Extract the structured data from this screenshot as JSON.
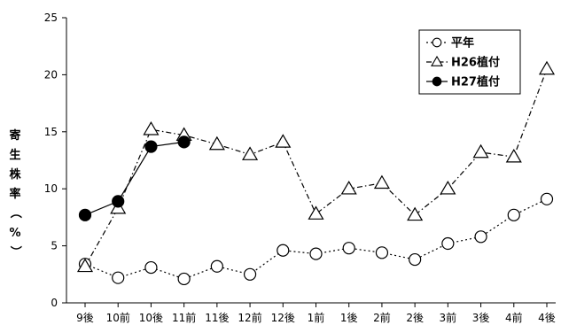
{
  "chart_data": {
    "type": "line",
    "title": "",
    "xlabel": "",
    "ylabel": "寄生株率（%）",
    "ylabel_chars": [
      "寄",
      "生",
      "株",
      "率",
      "（",
      "%",
      "）"
    ],
    "ylim": [
      0,
      25
    ],
    "yticks": [
      0,
      5,
      10,
      15,
      20,
      25
    ],
    "grid": false,
    "legend_position": "top-right",
    "categories": [
      "9後",
      "10前",
      "10後",
      "11前",
      "11後",
      "12前",
      "12後",
      "1前",
      "1後",
      "2前",
      "2後",
      "3前",
      "3後",
      "4前",
      "4後"
    ],
    "series": [
      {
        "name": "平年",
        "marker": "circle-open",
        "line": "dotted",
        "color": "#000000",
        "values": [
          3.4,
          2.2,
          3.1,
          2.1,
          3.2,
          2.5,
          4.6,
          4.3,
          4.8,
          4.4,
          3.8,
          5.2,
          5.8,
          7.7,
          9.1
        ]
      },
      {
        "name": "H26植付",
        "marker": "triangle-open",
        "line": "dash-dot",
        "color": "#000000",
        "values": [
          3.2,
          8.3,
          15.2,
          14.7,
          13.9,
          13.0,
          14.1,
          7.8,
          10.0,
          10.5,
          7.7,
          10.0,
          13.2,
          12.8,
          20.5
        ]
      },
      {
        "name": "H27植付",
        "marker": "circle-filled",
        "line": "solid",
        "color": "#000000",
        "values": [
          7.7,
          8.9,
          13.7,
          14.1,
          null,
          null,
          null,
          null,
          null,
          null,
          null,
          null,
          null,
          null,
          null
        ]
      }
    ]
  }
}
